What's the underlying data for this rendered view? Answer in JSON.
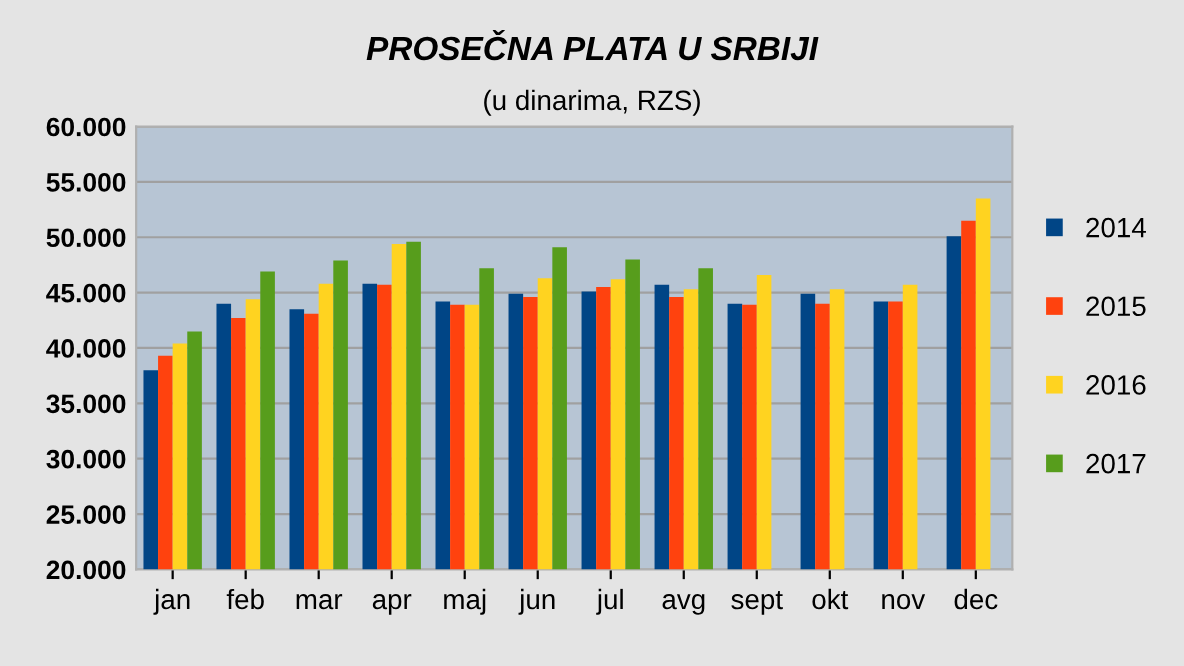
{
  "chart_data": {
    "type": "bar",
    "title": "PROSEČNA PLATA U SRBIJI",
    "subtitle": "(u dinarima, RZS)",
    "categories": [
      "jan",
      "feb",
      "mar",
      "apr",
      "maj",
      "jun",
      "jul",
      "avg",
      "sept",
      "okt",
      "nov",
      "dec"
    ],
    "series": [
      {
        "name": "2014",
        "color": "#004586",
        "values": [
          38000,
          44000,
          43500,
          45800,
          44200,
          44900,
          45100,
          45700,
          44000,
          44900,
          44200,
          50100
        ]
      },
      {
        "name": "2015",
        "color": "#ff420e",
        "values": [
          39300,
          42700,
          43100,
          45700,
          43900,
          44600,
          45500,
          44600,
          43900,
          44000,
          44200,
          51500
        ]
      },
      {
        "name": "2016",
        "color": "#ffd320",
        "values": [
          40400,
          44400,
          45800,
          49400,
          43900,
          46300,
          46200,
          45300,
          46600,
          45300,
          45700,
          53500
        ]
      },
      {
        "name": "2017",
        "color": "#579d1c",
        "values": [
          41500,
          46900,
          47900,
          49600,
          47200,
          49100,
          48000,
          47200,
          null,
          null,
          null,
          null
        ]
      }
    ],
    "ylim": [
      20000,
      60000
    ],
    "yticks": [
      {
        "value": 20000,
        "label": "20.000"
      },
      {
        "value": 25000,
        "label": "25.000"
      },
      {
        "value": 30000,
        "label": "30.000"
      },
      {
        "value": 35000,
        "label": "35.000"
      },
      {
        "value": 40000,
        "label": "40.000"
      },
      {
        "value": 45000,
        "label": "45.000"
      },
      {
        "value": 50000,
        "label": "50.000"
      },
      {
        "value": 55000,
        "label": "55.000"
      },
      {
        "value": 60000,
        "label": "60.000"
      }
    ],
    "grid": "y",
    "legend": "right"
  }
}
